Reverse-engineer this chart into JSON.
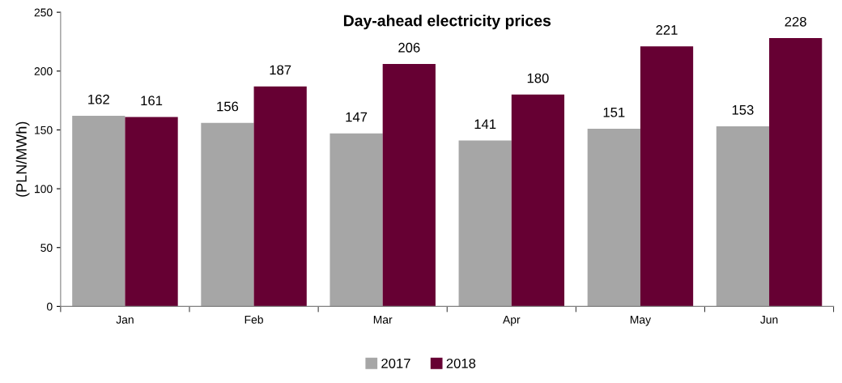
{
  "chart_data": {
    "type": "bar",
    "title": "Day-ahead electricity prices",
    "ylabel": "(PLN/MWh)",
    "categories": [
      "Jan",
      "Feb",
      "Mar",
      "Apr",
      "May",
      "Jun"
    ],
    "series": [
      {
        "name": "2017",
        "color": "#a6a6a6",
        "values": [
          162,
          156,
          147,
          141,
          151,
          153
        ]
      },
      {
        "name": "2018",
        "color": "#660033",
        "values": [
          161,
          187,
          206,
          180,
          221,
          228
        ]
      }
    ],
    "ylim": [
      0,
      250
    ],
    "yticks": [
      0,
      50,
      100,
      150,
      200,
      250
    ],
    "grid": false,
    "legend": "bottom",
    "data_labels": true
  }
}
